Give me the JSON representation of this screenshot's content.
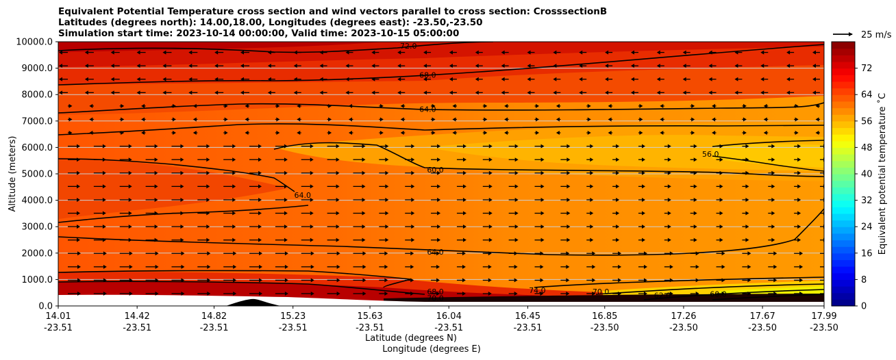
{
  "chart_data": {
    "type": "heatmap",
    "title_lines": [
      "Equivalent Potential Temperature cross section and wind vectors parallel to cross section: CrosssectionB",
      "Latitudes (degrees north): 14.00,18.00, Longitudes (degrees east): -23.50,-23.50",
      "Simulation start time: 2023-10-14 00:00:00, Valid time: 2023-10-15 05:00:00"
    ],
    "xlabel": "Latitude (degrees N)",
    "xlabel2": "Longitude (degrees E)",
    "ylabel": "Altitude (meters)",
    "ylim": [
      0,
      10000
    ],
    "xlim": [
      14.01,
      17.99
    ],
    "x_ticks": [
      {
        "lat": "14.01",
        "lon": "-23.51",
        "v": 14.01
      },
      {
        "lat": "14.42",
        "lon": "-23.51",
        "v": 14.42
      },
      {
        "lat": "14.82",
        "lon": "-23.51",
        "v": 14.82
      },
      {
        "lat": "15.23",
        "lon": "-23.51",
        "v": 15.23
      },
      {
        "lat": "15.63",
        "lon": "-23.51",
        "v": 15.63
      },
      {
        "lat": "16.04",
        "lon": "-23.51",
        "v": 16.04
      },
      {
        "lat": "16.45",
        "lon": "-23.51",
        "v": 16.45
      },
      {
        "lat": "16.85",
        "lon": "-23.50",
        "v": 16.85
      },
      {
        "lat": "17.26",
        "lon": "-23.50",
        "v": 17.26
      },
      {
        "lat": "17.67",
        "lon": "-23.50",
        "v": 17.67
      },
      {
        "lat": "17.99",
        "lon": "-23.50",
        "v": 17.99
      }
    ],
    "y_ticks": [
      "0.0",
      "1000.0",
      "2000.0",
      "3000.0",
      "4000.0",
      "5000.0",
      "6000.0",
      "7000.0",
      "8000.0",
      "9000.0",
      "10000.0"
    ],
    "y_tick_values": [
      0,
      1000,
      2000,
      3000,
      4000,
      5000,
      6000,
      7000,
      8000,
      9000,
      10000
    ],
    "grid": "horizontal",
    "colorbar": {
      "label": "Equivalent potential temperature ˚C",
      "ticks": [
        "0",
        "8",
        "16",
        "24",
        "32",
        "40",
        "48",
        "56",
        "64",
        "72"
      ],
      "tick_values": [
        0,
        8,
        16,
        24,
        32,
        40,
        48,
        56,
        64,
        72
      ],
      "range": [
        0,
        80
      ],
      "colormap": "jet"
    },
    "wind_key": {
      "label": "25 m/s",
      "value": 25
    },
    "contours": [
      {
        "label": "72.0",
        "level": 72,
        "x": 15.83,
        "y": 9850
      },
      {
        "label": "68.0",
        "level": 68,
        "x": 15.93,
        "y": 8750
      },
      {
        "label": "64.0",
        "level": 64,
        "x": 15.93,
        "y": 7450
      },
      {
        "label": "64.0",
        "level": 64,
        "x": 15.28,
        "y": 4200
      },
      {
        "label": "60.0",
        "level": 60,
        "x": 15.97,
        "y": 5150
      },
      {
        "label": "56.0",
        "level": 56,
        "x": 17.4,
        "y": 5750
      },
      {
        "label": "64.0",
        "level": 64,
        "x": 15.97,
        "y": 2050
      },
      {
        "label": "68.0",
        "level": 68,
        "x": 15.97,
        "y": 550
      },
      {
        "label": "70.0",
        "level": 70,
        "x": 15.97,
        "y": 300
      },
      {
        "label": "74.0",
        "level": 74,
        "x": 16.5,
        "y": 600
      },
      {
        "label": "70.0",
        "level": 70,
        "x": 16.83,
        "y": 550
      },
      {
        "label": "62.0",
        "level": 62,
        "x": 17.15,
        "y": 400
      },
      {
        "label": "60.0",
        "level": 60,
        "x": 17.44,
        "y": 450
      }
    ]
  }
}
